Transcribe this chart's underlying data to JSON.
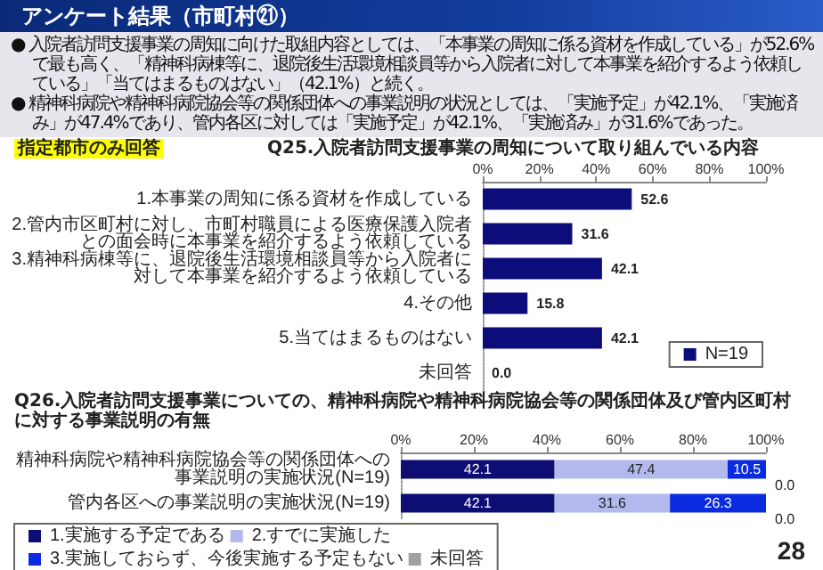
{
  "chart_data": [
    {
      "type": "bar",
      "orientation": "horizontal",
      "title": "Q25.入院者訪問支援事業の周知について取り組んでいる内容",
      "annotations": [
        "アンケート結果（市町村㉑）",
        "● 入院者訪問支援事業の周知に向けた取組内容としては、「本事業の周知に係る資材を作成している」が52.6%で最も高く、「精神科病棟等に、退院後生活環境相談員等から入院者に対して本事業を紹介するよう依頼している」「当てはまるものはない」（42.1%）と続く。",
        "● 精神科病院や精神科病院協会等の関係団体への事業説明の状況としては、「実施予定」が42.1%、「実施済み」が47.4%であり、管内各区に対しては「実施予定」が42.1%、「実施済み」が31.6%であった。",
        "指定都市のみ回答"
      ],
      "categories": [
        "1.本事業の周知に係る資材を作成している",
        "2.管内市区町村に対し、市町村職員による医療保護入院者との面会時に本事業を紹介するよう依頼している",
        "3.精神科病棟等に、退院後生活環境相談員等から入院者に対して本事業を紹介するよう依頼している",
        "4.その他",
        "5.当てはまるものはない",
        "未回答"
      ],
      "series": [
        {
          "name": "N=19",
          "color": "#0c0c7a",
          "values": [
            52.6,
            31.6,
            42.1,
            15.8,
            42.1,
            0.0
          ],
          "value_labels": [
            "52.6",
            "31.6",
            "42.1",
            "15.8",
            "42.1",
            "0.0"
          ]
        }
      ],
      "xlim": [
        0,
        100
      ],
      "xticks": [
        {
          "value": 0,
          "label": "0%"
        },
        {
          "value": 20,
          "label": "20%"
        },
        {
          "value": 40,
          "label": "40%"
        },
        {
          "value": 60,
          "label": "60%"
        },
        {
          "value": 80,
          "label": "80%"
        },
        {
          "value": 100,
          "label": "100%"
        }
      ],
      "legend": "bottom right"
    },
    {
      "type": "bar",
      "orientation": "horizontal",
      "stacked": true,
      "title": "Q26.入院者訪問支援事業についての、精神科病院や精神科病院協会等の関係団体及び管内区町村に対する事業説明の有無",
      "annotations": [
        "28"
      ],
      "categories": [
        "精神科病院や精神科病院協会等の関係団体への事業説明の実施状況(N=19)",
        "管内各区への事業説明の実施状況(N=19)"
      ],
      "series": [
        {
          "name": "1.実施する予定である",
          "color": "#0d0d73",
          "values": [
            42.1,
            42.1
          ],
          "value_labels": [
            "42.1",
            "42.1"
          ]
        },
        {
          "name": "2.すでに実施した",
          "color": "#b3b9ec",
          "values": [
            47.4,
            31.6
          ],
          "value_labels": [
            "47.4",
            "31.6"
          ]
        },
        {
          "name": "3.実施しておらず、今後実施する予定もない",
          "color": "#0a2be0",
          "values": [
            10.5,
            26.3
          ],
          "value_labels": [
            "10.5",
            "26.3"
          ]
        },
        {
          "name": "未回答",
          "color": "#a0a0a0",
          "values": [
            0.0,
            0.0
          ],
          "value_labels": [
            "0.0",
            "0.0"
          ]
        }
      ],
      "xlim": [
        0,
        100
      ],
      "xticks": [
        {
          "value": 0,
          "label": "0%"
        },
        {
          "value": 20,
          "label": "20%"
        },
        {
          "value": 40,
          "label": "40%"
        },
        {
          "value": 60,
          "label": "60%"
        },
        {
          "value": 80,
          "label": "80%"
        },
        {
          "value": 100,
          "label": "100%"
        }
      ],
      "legend": "bottom"
    }
  ]
}
